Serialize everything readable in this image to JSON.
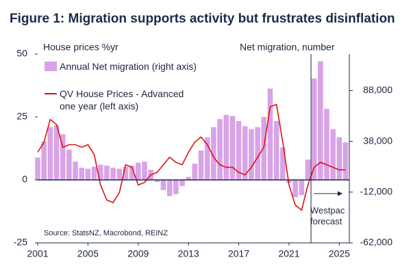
{
  "chart_data": {
    "type": "combo",
    "title": "Figure 1: Migration supports activity but frustrates disinflation",
    "y_label": "House prices %yr",
    "y2_label": "Net migration, number",
    "source": "Source: StatsNZ, Macrobond, REINZ",
    "annotation": {
      "text": "Westpac forecast",
      "x": 2022.75
    },
    "x": [
      2001,
      2001.5,
      2002,
      2002.5,
      2003,
      2003.5,
      2004,
      2004.5,
      2005,
      2005.5,
      2006,
      2006.5,
      2007,
      2007.5,
      2008,
      2008.5,
      2009,
      2009.5,
      2010,
      2010.5,
      2011,
      2011.5,
      2012,
      2012.5,
      2013,
      2013.5,
      2014,
      2014.5,
      2015,
      2015.5,
      2016,
      2016.5,
      2017,
      2017.5,
      2018,
      2018.5,
      2019,
      2019.5,
      2020,
      2020.5,
      2021,
      2021.5,
      2022,
      2022.5,
      2023,
      2023.5,
      2024,
      2024.5,
      2025,
      2025.5
    ],
    "series": [
      {
        "name": "Annual Net migration (right axis)",
        "type": "bar",
        "axis": "y2",
        "color": "#d9a3e8",
        "values": [
          22000,
          38000,
          52000,
          54000,
          45000,
          30000,
          18000,
          12000,
          11000,
          13000,
          15000,
          14000,
          12000,
          11000,
          13000,
          14000,
          17000,
          18000,
          10000,
          -2000,
          -10000,
          -16000,
          -14000,
          -6000,
          3000,
          16000,
          29000,
          42000,
          52000,
          60000,
          64000,
          63000,
          58000,
          53000,
          50000,
          52000,
          62000,
          90000,
          58000,
          32000,
          -3000,
          -17000,
          -15000,
          20000,
          100000,
          117000,
          70000,
          50000,
          42000,
          37000
        ]
      },
      {
        "name": "QV House Prices - Advanced one year (left axis)",
        "type": "line",
        "color": "#e01010",
        "values": [
          11,
          15,
          24,
          22,
          13,
          14,
          14,
          13,
          14,
          10,
          -2,
          -8,
          -9,
          -5,
          6,
          5,
          -2,
          -1,
          2,
          3,
          6,
          9,
          7,
          6,
          11,
          15,
          17,
          14,
          9,
          6,
          5,
          5,
          3,
          2,
          5,
          9,
          13,
          29,
          30,
          15,
          -2,
          -10,
          -12,
          -2,
          5,
          7,
          6,
          5,
          4,
          4
        ]
      }
    ],
    "xlim": [
      2001,
      2025.8
    ],
    "xticks": [
      2001,
      2005,
      2009,
      2013,
      2017,
      2021,
      2025
    ],
    "ylim": [
      -25,
      50
    ],
    "yticks": [
      -25,
      0,
      25,
      50
    ],
    "y2lim": [
      -62000,
      124000
    ],
    "y2ticks": [
      {
        "value": -62000,
        "label": "-62,000"
      },
      {
        "value": -12000,
        "label": "-12,000"
      },
      {
        "value": 38000,
        "label": "38,000"
      },
      {
        "value": 88000,
        "label": "88,000"
      }
    ]
  }
}
